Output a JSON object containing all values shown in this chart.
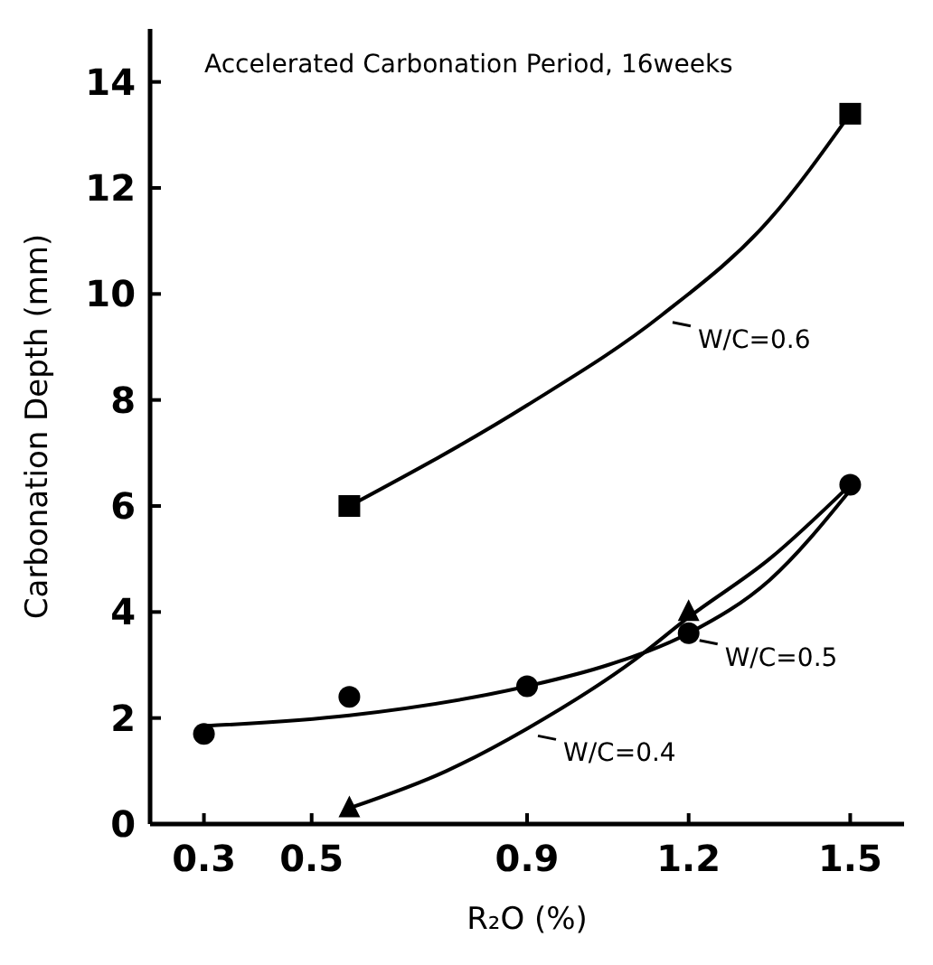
{
  "chart_data": {
    "type": "scatter",
    "title": "Accelerated Carbonation Period, 16weeks",
    "xlabel": "R₂O (%)",
    "ylabel": "Carbonation Depth (mm)",
    "xlim": [
      0.2,
      1.6
    ],
    "xticks": [
      0.3,
      0.5,
      0.9,
      1.2,
      1.5
    ],
    "ylim": [
      0,
      15
    ],
    "yticks": [
      0,
      2,
      4,
      6,
      8,
      10,
      12,
      14
    ],
    "grid": false,
    "legend": "right",
    "series": [
      {
        "marker": "square",
        "color": "#000000",
        "x": [
          0.57,
          1.5
        ],
        "values": [
          6.0,
          13.4
        ]
      },
      {
        "marker": "circle",
        "color": "#000000",
        "x": [
          0.3,
          0.57,
          0.9,
          1.2,
          1.5
        ],
        "values": [
          1.7,
          2.4,
          2.6,
          3.6,
          6.4
        ]
      },
      {
        "marker": "triangle",
        "color": "#000000",
        "x": [
          0.57,
          1.2
        ],
        "values": [
          0.3,
          4.0
        ]
      },
      {
        "type": "line",
        "name": "W/C=0.6",
        "marker": "none",
        "line_style": "solid",
        "color": "#000000",
        "x": [
          0.57,
          0.9,
          1.15,
          1.35,
          1.5
        ],
        "values": [
          6.0,
          7.9,
          9.6,
          11.4,
          13.4
        ]
      },
      {
        "type": "line",
        "name": "W/C=0.5",
        "marker": "none",
        "line_style": "solid",
        "color": "#000000",
        "x": [
          0.3,
          0.57,
          0.9,
          1.05,
          1.2,
          1.35,
          1.5
        ],
        "values": [
          1.85,
          2.05,
          2.6,
          3.0,
          3.6,
          4.6,
          6.3
        ]
      },
      {
        "type": "line",
        "name": "W/C=0.4",
        "marker": "none",
        "line_style": "solid",
        "color": "#000000",
        "x": [
          0.57,
          0.75,
          0.9,
          1.1,
          1.2,
          1.35,
          1.5
        ],
        "values": [
          0.3,
          1.0,
          1.8,
          3.1,
          3.9,
          5.0,
          6.4
        ]
      }
    ]
  }
}
